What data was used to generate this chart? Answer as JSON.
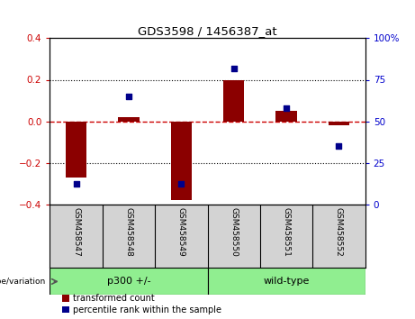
{
  "title": "GDS3598 / 1456387_at",
  "samples": [
    "GSM458547",
    "GSM458548",
    "GSM458549",
    "GSM458550",
    "GSM458551",
    "GSM458552"
  ],
  "red_values": [
    -0.27,
    0.02,
    -0.38,
    0.2,
    0.05,
    -0.02
  ],
  "blue_values": [
    12,
    65,
    12,
    82,
    58,
    35
  ],
  "ylim_left": [
    -0.4,
    0.4
  ],
  "ylim_right": [
    0,
    100
  ],
  "yticks_left": [
    -0.4,
    -0.2,
    0.0,
    0.2,
    0.4
  ],
  "yticks_right": [
    0,
    25,
    50,
    75,
    100
  ],
  "group_label": "genotype/variation",
  "red_color": "#8B0000",
  "blue_color": "#00008B",
  "bar_width": 0.4,
  "legend_red": "transformed count",
  "legend_blue": "percentile rank within the sample",
  "hline_color": "#cc0000",
  "bg_color": "#ffffff",
  "plot_bg": "#ffffff",
  "sample_bg": "#d3d3d3",
  "group_green": "#90EE90",
  "group_configs": [
    {
      "start": 0,
      "end": 2,
      "label": "p300 +/-"
    },
    {
      "start": 3,
      "end": 5,
      "label": "wild-type"
    }
  ]
}
